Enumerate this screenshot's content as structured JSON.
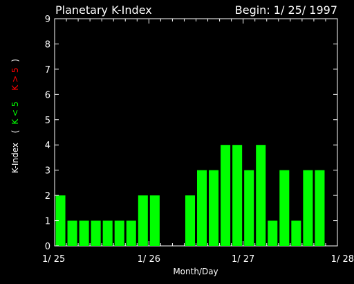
{
  "header": {
    "title": "Planetary K-Index",
    "begin_label": "Begin: 1/ 25/ 1997"
  },
  "colors": {
    "background": "#000000",
    "axis": "#ffffff",
    "bar_fill": "#00ff00",
    "ylabel_main": "#ffffff",
    "ylabel_low": "#00ff00",
    "ylabel_high": "#ff0000"
  },
  "chart_data": {
    "type": "bar",
    "title": "Planetary K-Index",
    "subtitle": "Begin: 1/ 25/ 1997",
    "xlabel": "Month/Day",
    "ylabel": "K-Index",
    "ylabel_parts": {
      "open": "(",
      "low": "K < 5",
      "high": "K > 5",
      "close": ")"
    },
    "x_unit": "days",
    "x_range": [
      0,
      3
    ],
    "ylim": [
      0,
      9
    ],
    "bar_width_days": 0.125,
    "y_ticks": [
      0,
      1,
      2,
      3,
      4,
      5,
      6,
      7,
      8,
      9
    ],
    "x_ticks": [
      {
        "day": 0,
        "label": "1/ 25"
      },
      {
        "day": 1,
        "label": "1/ 26"
      },
      {
        "day": 2,
        "label": "1/ 27"
      },
      {
        "day": 3,
        "label": "1/ 28"
      }
    ],
    "x_minor_ticks_per_day": 8,
    "values": [
      2,
      1,
      1,
      1,
      1,
      1,
      1,
      2,
      2,
      null,
      null,
      2,
      3,
      3,
      4,
      4,
      3,
      4,
      1,
      3,
      1,
      3,
      3
    ],
    "legend": "none",
    "grid": false
  }
}
